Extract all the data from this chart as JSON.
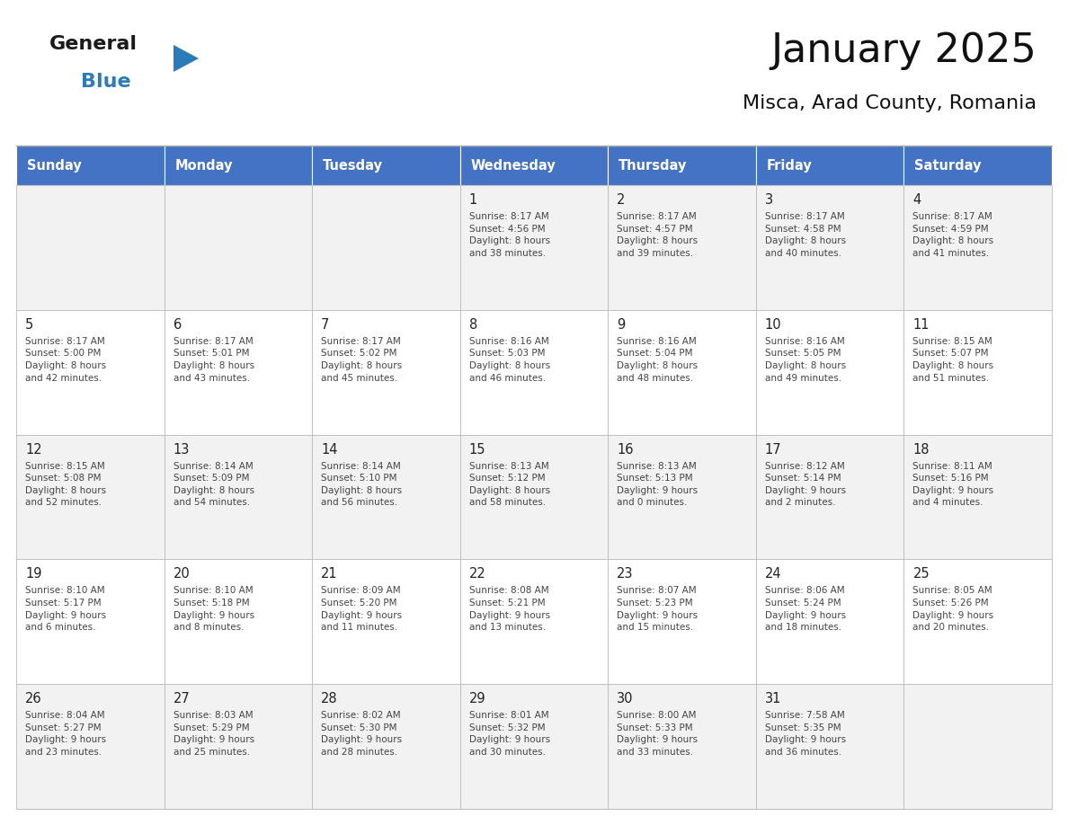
{
  "title": "January 2025",
  "subtitle": "Misca, Arad County, Romania",
  "days_of_week": [
    "Sunday",
    "Monday",
    "Tuesday",
    "Wednesday",
    "Thursday",
    "Friday",
    "Saturday"
  ],
  "header_bg": "#4472C4",
  "header_text": "#FFFFFF",
  "cell_bg_light": "#F2F2F2",
  "cell_bg_white": "#FFFFFF",
  "cell_border": "#BBBBBB",
  "day_number_color": "#222222",
  "text_color": "#444444",
  "title_color": "#111111",
  "blue_color": "#2B7BB9",
  "general_color": "#111111",
  "calendar_data": [
    [
      {
        "day": "",
        "info": ""
      },
      {
        "day": "",
        "info": ""
      },
      {
        "day": "",
        "info": ""
      },
      {
        "day": "1",
        "info": "Sunrise: 8:17 AM\nSunset: 4:56 PM\nDaylight: 8 hours\nand 38 minutes."
      },
      {
        "day": "2",
        "info": "Sunrise: 8:17 AM\nSunset: 4:57 PM\nDaylight: 8 hours\nand 39 minutes."
      },
      {
        "day": "3",
        "info": "Sunrise: 8:17 AM\nSunset: 4:58 PM\nDaylight: 8 hours\nand 40 minutes."
      },
      {
        "day": "4",
        "info": "Sunrise: 8:17 AM\nSunset: 4:59 PM\nDaylight: 8 hours\nand 41 minutes."
      }
    ],
    [
      {
        "day": "5",
        "info": "Sunrise: 8:17 AM\nSunset: 5:00 PM\nDaylight: 8 hours\nand 42 minutes."
      },
      {
        "day": "6",
        "info": "Sunrise: 8:17 AM\nSunset: 5:01 PM\nDaylight: 8 hours\nand 43 minutes."
      },
      {
        "day": "7",
        "info": "Sunrise: 8:17 AM\nSunset: 5:02 PM\nDaylight: 8 hours\nand 45 minutes."
      },
      {
        "day": "8",
        "info": "Sunrise: 8:16 AM\nSunset: 5:03 PM\nDaylight: 8 hours\nand 46 minutes."
      },
      {
        "day": "9",
        "info": "Sunrise: 8:16 AM\nSunset: 5:04 PM\nDaylight: 8 hours\nand 48 minutes."
      },
      {
        "day": "10",
        "info": "Sunrise: 8:16 AM\nSunset: 5:05 PM\nDaylight: 8 hours\nand 49 minutes."
      },
      {
        "day": "11",
        "info": "Sunrise: 8:15 AM\nSunset: 5:07 PM\nDaylight: 8 hours\nand 51 minutes."
      }
    ],
    [
      {
        "day": "12",
        "info": "Sunrise: 8:15 AM\nSunset: 5:08 PM\nDaylight: 8 hours\nand 52 minutes."
      },
      {
        "day": "13",
        "info": "Sunrise: 8:14 AM\nSunset: 5:09 PM\nDaylight: 8 hours\nand 54 minutes."
      },
      {
        "day": "14",
        "info": "Sunrise: 8:14 AM\nSunset: 5:10 PM\nDaylight: 8 hours\nand 56 minutes."
      },
      {
        "day": "15",
        "info": "Sunrise: 8:13 AM\nSunset: 5:12 PM\nDaylight: 8 hours\nand 58 minutes."
      },
      {
        "day": "16",
        "info": "Sunrise: 8:13 AM\nSunset: 5:13 PM\nDaylight: 9 hours\nand 0 minutes."
      },
      {
        "day": "17",
        "info": "Sunrise: 8:12 AM\nSunset: 5:14 PM\nDaylight: 9 hours\nand 2 minutes."
      },
      {
        "day": "18",
        "info": "Sunrise: 8:11 AM\nSunset: 5:16 PM\nDaylight: 9 hours\nand 4 minutes."
      }
    ],
    [
      {
        "day": "19",
        "info": "Sunrise: 8:10 AM\nSunset: 5:17 PM\nDaylight: 9 hours\nand 6 minutes."
      },
      {
        "day": "20",
        "info": "Sunrise: 8:10 AM\nSunset: 5:18 PM\nDaylight: 9 hours\nand 8 minutes."
      },
      {
        "day": "21",
        "info": "Sunrise: 8:09 AM\nSunset: 5:20 PM\nDaylight: 9 hours\nand 11 minutes."
      },
      {
        "day": "22",
        "info": "Sunrise: 8:08 AM\nSunset: 5:21 PM\nDaylight: 9 hours\nand 13 minutes."
      },
      {
        "day": "23",
        "info": "Sunrise: 8:07 AM\nSunset: 5:23 PM\nDaylight: 9 hours\nand 15 minutes."
      },
      {
        "day": "24",
        "info": "Sunrise: 8:06 AM\nSunset: 5:24 PM\nDaylight: 9 hours\nand 18 minutes."
      },
      {
        "day": "25",
        "info": "Sunrise: 8:05 AM\nSunset: 5:26 PM\nDaylight: 9 hours\nand 20 minutes."
      }
    ],
    [
      {
        "day": "26",
        "info": "Sunrise: 8:04 AM\nSunset: 5:27 PM\nDaylight: 9 hours\nand 23 minutes."
      },
      {
        "day": "27",
        "info": "Sunrise: 8:03 AM\nSunset: 5:29 PM\nDaylight: 9 hours\nand 25 minutes."
      },
      {
        "day": "28",
        "info": "Sunrise: 8:02 AM\nSunset: 5:30 PM\nDaylight: 9 hours\nand 28 minutes."
      },
      {
        "day": "29",
        "info": "Sunrise: 8:01 AM\nSunset: 5:32 PM\nDaylight: 9 hours\nand 30 minutes."
      },
      {
        "day": "30",
        "info": "Sunrise: 8:00 AM\nSunset: 5:33 PM\nDaylight: 9 hours\nand 33 minutes."
      },
      {
        "day": "31",
        "info": "Sunrise: 7:58 AM\nSunset: 5:35 PM\nDaylight: 9 hours\nand 36 minutes."
      },
      {
        "day": "",
        "info": ""
      }
    ]
  ]
}
